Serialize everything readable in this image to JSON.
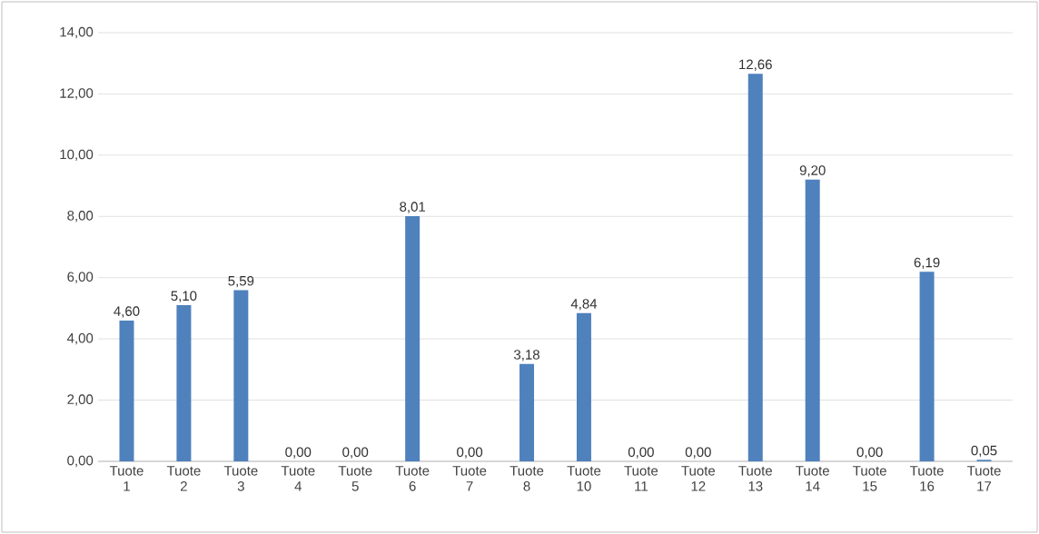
{
  "chart_data": {
    "type": "bar",
    "categories": [
      "Tuote 1",
      "Tuote 2",
      "Tuote 3",
      "Tuote 4",
      "Tuote 5",
      "Tuote 6",
      "Tuote 7",
      "Tuote 8",
      "Tuote 10",
      "Tuote 11",
      "Tuote 12",
      "Tuote 13",
      "Tuote 14",
      "Tuote 15",
      "Tuote 16",
      "Tuote 17"
    ],
    "values": [
      4.6,
      5.1,
      5.59,
      0.0,
      0.0,
      8.01,
      0.0,
      3.18,
      4.84,
      0.0,
      0.0,
      12.66,
      9.2,
      0.0,
      6.19,
      0.05
    ],
    "value_labels": [
      "4,60",
      "5,10",
      "5,59",
      "0,00",
      "0,00",
      "8,01",
      "0,00",
      "3,18",
      "4,84",
      "0,00",
      "0,00",
      "12,66",
      "9,20",
      "0,00",
      "6,19",
      "0,05"
    ],
    "color": "#4f81bd",
    "ylim": [
      0,
      14
    ],
    "yticks": [
      {
        "value": 0,
        "label": "0,00"
      },
      {
        "value": 2,
        "label": "2,00"
      },
      {
        "value": 4,
        "label": "4,00"
      },
      {
        "value": 6,
        "label": "6,00"
      },
      {
        "value": 8,
        "label": "8,00"
      },
      {
        "value": 10,
        "label": "10,00"
      },
      {
        "value": 12,
        "label": "12,00"
      },
      {
        "value": 14,
        "label": "14,00"
      }
    ],
    "grid": "y"
  }
}
